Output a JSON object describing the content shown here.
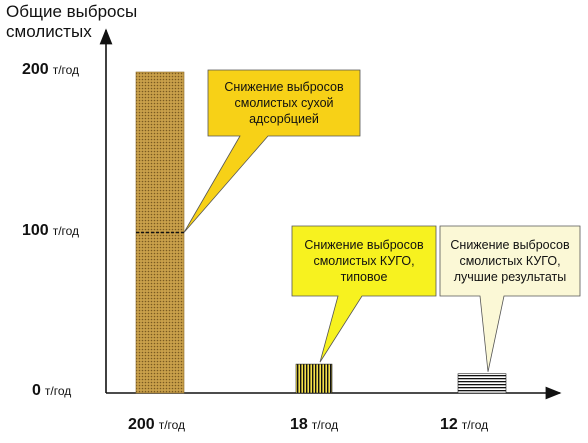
{
  "chart_data": {
    "type": "bar",
    "title": "",
    "ylabel": "Общие выбросы\nсмолистых",
    "xlabel": "",
    "ylim": [
      0,
      200
    ],
    "grid": false,
    "legend": "none",
    "unit": "т/год",
    "y_ticks": [
      {
        "value": 200,
        "label": "200"
      },
      {
        "value": 100,
        "label": "100"
      },
      {
        "value": 0,
        "label": "0"
      }
    ],
    "categories": [
      "200",
      "18",
      "12"
    ],
    "values": [
      200,
      18,
      12
    ],
    "bar_fills": [
      "dots-brown",
      "vertical-stripes",
      "horizontal-stripes"
    ],
    "annotations": [
      {
        "bar": 0,
        "anchor_value": 100,
        "text": "Снижение выбросов\nсмолистых сухой\nадсорбцией",
        "color": "#f7d117"
      },
      {
        "bar": 1,
        "anchor_value": 18,
        "text": "Снижение выбросов\nсмолистых КУГО,\nтиповое",
        "color": "#f7f21f"
      },
      {
        "bar": 2,
        "anchor_value": 12,
        "text": "Снижение выбросов\nсмолистых КУГО,\nлучшие результаты",
        "color": "#fbf8d6"
      }
    ]
  }
}
